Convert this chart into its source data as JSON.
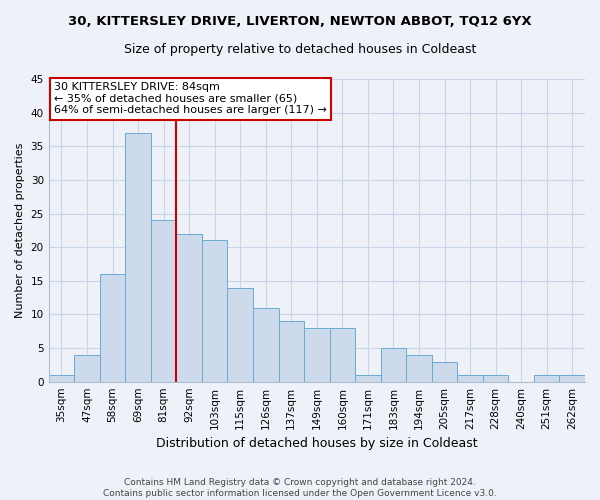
{
  "title_line1": "30, KITTERSLEY DRIVE, LIVERTON, NEWTON ABBOT, TQ12 6YX",
  "title_line2": "Size of property relative to detached houses in Coldeast",
  "xlabel": "Distribution of detached houses by size in Coldeast",
  "ylabel": "Number of detached properties",
  "categories": [
    "35sqm",
    "47sqm",
    "58sqm",
    "69sqm",
    "81sqm",
    "92sqm",
    "103sqm",
    "115sqm",
    "126sqm",
    "137sqm",
    "149sqm",
    "160sqm",
    "171sqm",
    "183sqm",
    "194sqm",
    "205sqm",
    "217sqm",
    "228sqm",
    "240sqm",
    "251sqm",
    "262sqm"
  ],
  "values": [
    1,
    4,
    16,
    37,
    24,
    22,
    21,
    14,
    11,
    9,
    8,
    8,
    1,
    5,
    4,
    3,
    1,
    1,
    0,
    1,
    1
  ],
  "bar_color": "#ccdaeb",
  "bar_edge_color": "#6aaad4",
  "grid_color": "#c8d4e8",
  "vline_color": "#cc0000",
  "annotation_text": "30 KITTERSLEY DRIVE: 84sqm\n← 35% of detached houses are smaller (65)\n64% of semi-detached houses are larger (117) →",
  "annotation_box_color": "white",
  "annotation_box_edge": "#cc0000",
  "ylim": [
    0,
    45
  ],
  "yticks": [
    0,
    5,
    10,
    15,
    20,
    25,
    30,
    35,
    40,
    45
  ],
  "footnote": "Contains HM Land Registry data © Crown copyright and database right 2024.\nContains public sector information licensed under the Open Government Licence v3.0.",
  "background_color": "#eef2f8",
  "title1_fontsize": 9.5,
  "title2_fontsize": 9,
  "ylabel_fontsize": 8,
  "xlabel_fontsize": 9,
  "tick_fontsize": 7.5,
  "footnote_fontsize": 6.5,
  "annotation_fontsize": 8
}
